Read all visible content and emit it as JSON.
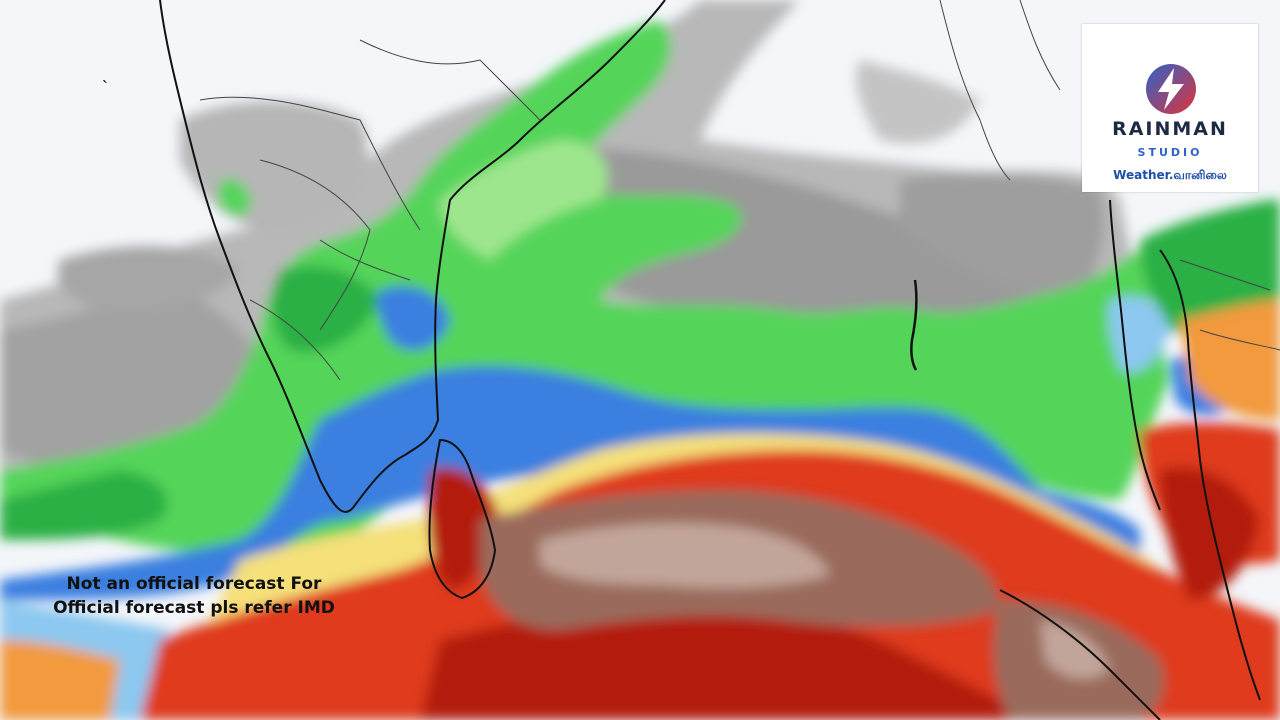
{
  "map": {
    "stray_mark": "`",
    "disclaimer_line1": "Not an official forecast For",
    "disclaimer_line2": "Official forecast pls refer IMD",
    "palette": {
      "background": "#f4f6fa",
      "gray_light": "#b4b4b4",
      "gray_dark": "#8a8a8a",
      "green_light": "#9ee68e",
      "green": "#54d45a",
      "green_dark": "#2cb045",
      "blue_light": "#8cc8f0",
      "blue": "#3a7fe0",
      "yellow": "#f5e07a",
      "orange": "#f29a3c",
      "red": "#df3a1c",
      "red_dark": "#b31d0f",
      "brown": "#9a6b5c",
      "brown_light": "#c2a59a",
      "coastline": "#111111"
    }
  },
  "logo": {
    "icon": "lightning-bolt-icon",
    "name": "RAINMAN",
    "sub": "STUDIO",
    "tagline": "Weather.வானிலை",
    "accent": "#2d63c8",
    "accent2": "#e0333c"
  }
}
